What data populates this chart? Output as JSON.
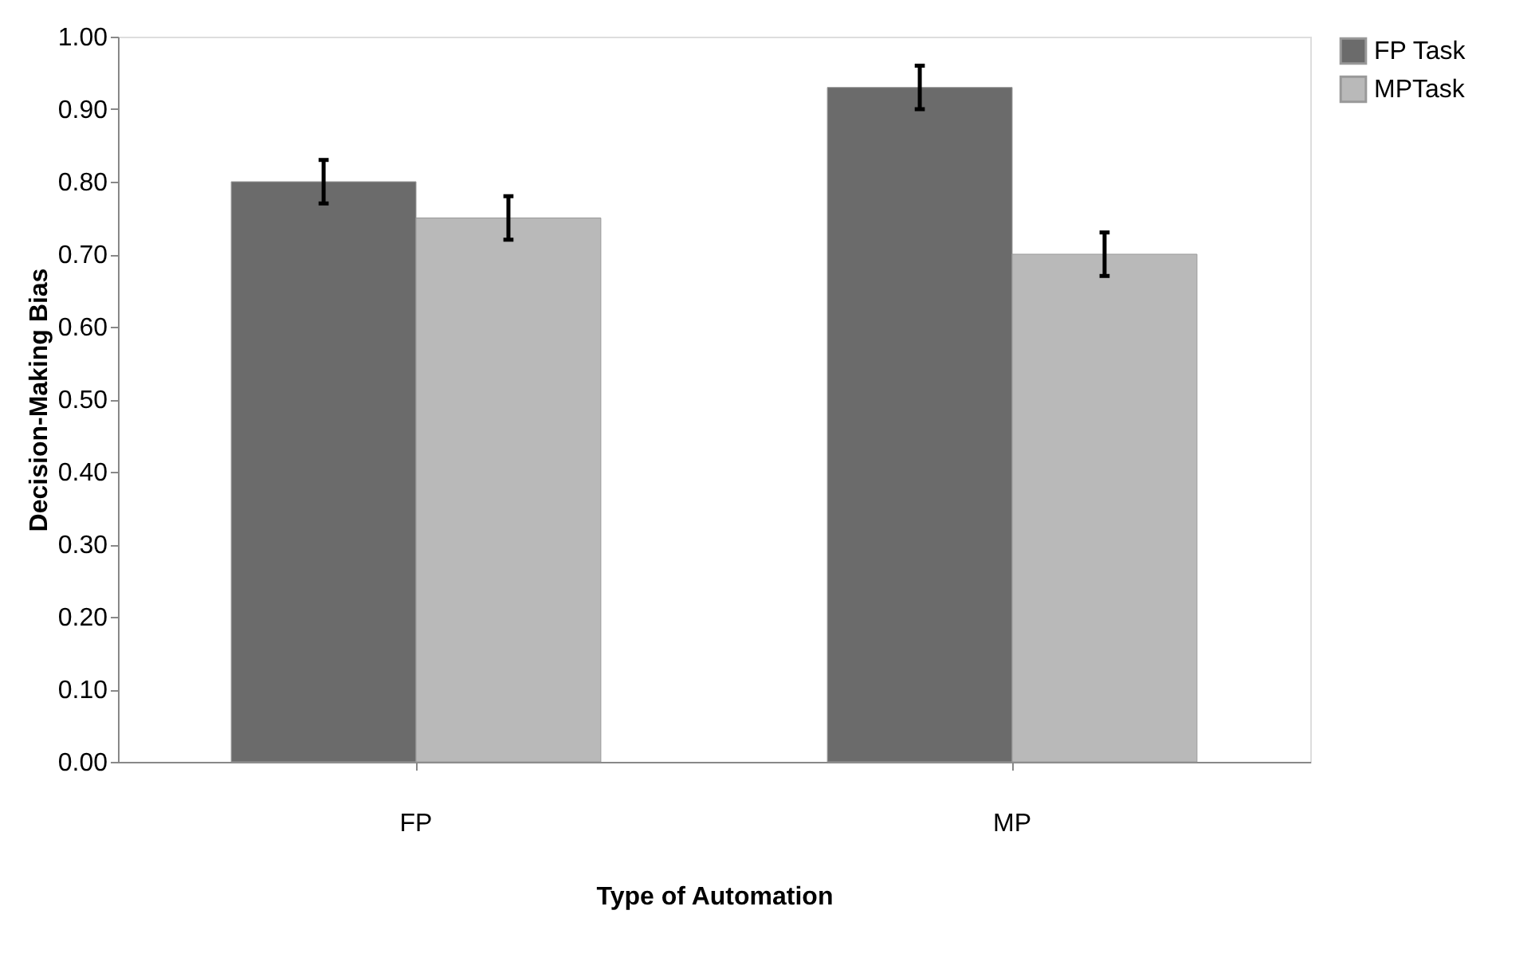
{
  "chart_data": {
    "type": "bar",
    "xlabel": "Type of Automation",
    "ylabel": "Decision-Making Bias",
    "categories": [
      "FP",
      "MP"
    ],
    "series": [
      {
        "name": "FP Task",
        "color": "#6b6b6b",
        "values": [
          0.8,
          0.93
        ],
        "errors": [
          0.03,
          0.03
        ]
      },
      {
        "name": "MPTask",
        "color": "#b9b9b9",
        "values": [
          0.75,
          0.7
        ],
        "errors": [
          0.03,
          0.03
        ]
      }
    ],
    "ylim": [
      0,
      1
    ],
    "yticks": [
      {
        "value": 0,
        "label": "0.00"
      },
      {
        "value": 0.1,
        "label": "0.10"
      },
      {
        "value": 0.2,
        "label": "0.20"
      },
      {
        "value": 0.3,
        "label": "0.30"
      },
      {
        "value": 0.4,
        "label": "0.40"
      },
      {
        "value": 0.5,
        "label": "0.50"
      },
      {
        "value": 0.6,
        "label": "0.60"
      },
      {
        "value": 0.7,
        "label": "0.70"
      },
      {
        "value": 0.8,
        "label": "0.80"
      },
      {
        "value": 0.9,
        "label": "0.90"
      },
      {
        "value": 1,
        "label": "1.00"
      }
    ],
    "grid": false,
    "legend": "right"
  }
}
